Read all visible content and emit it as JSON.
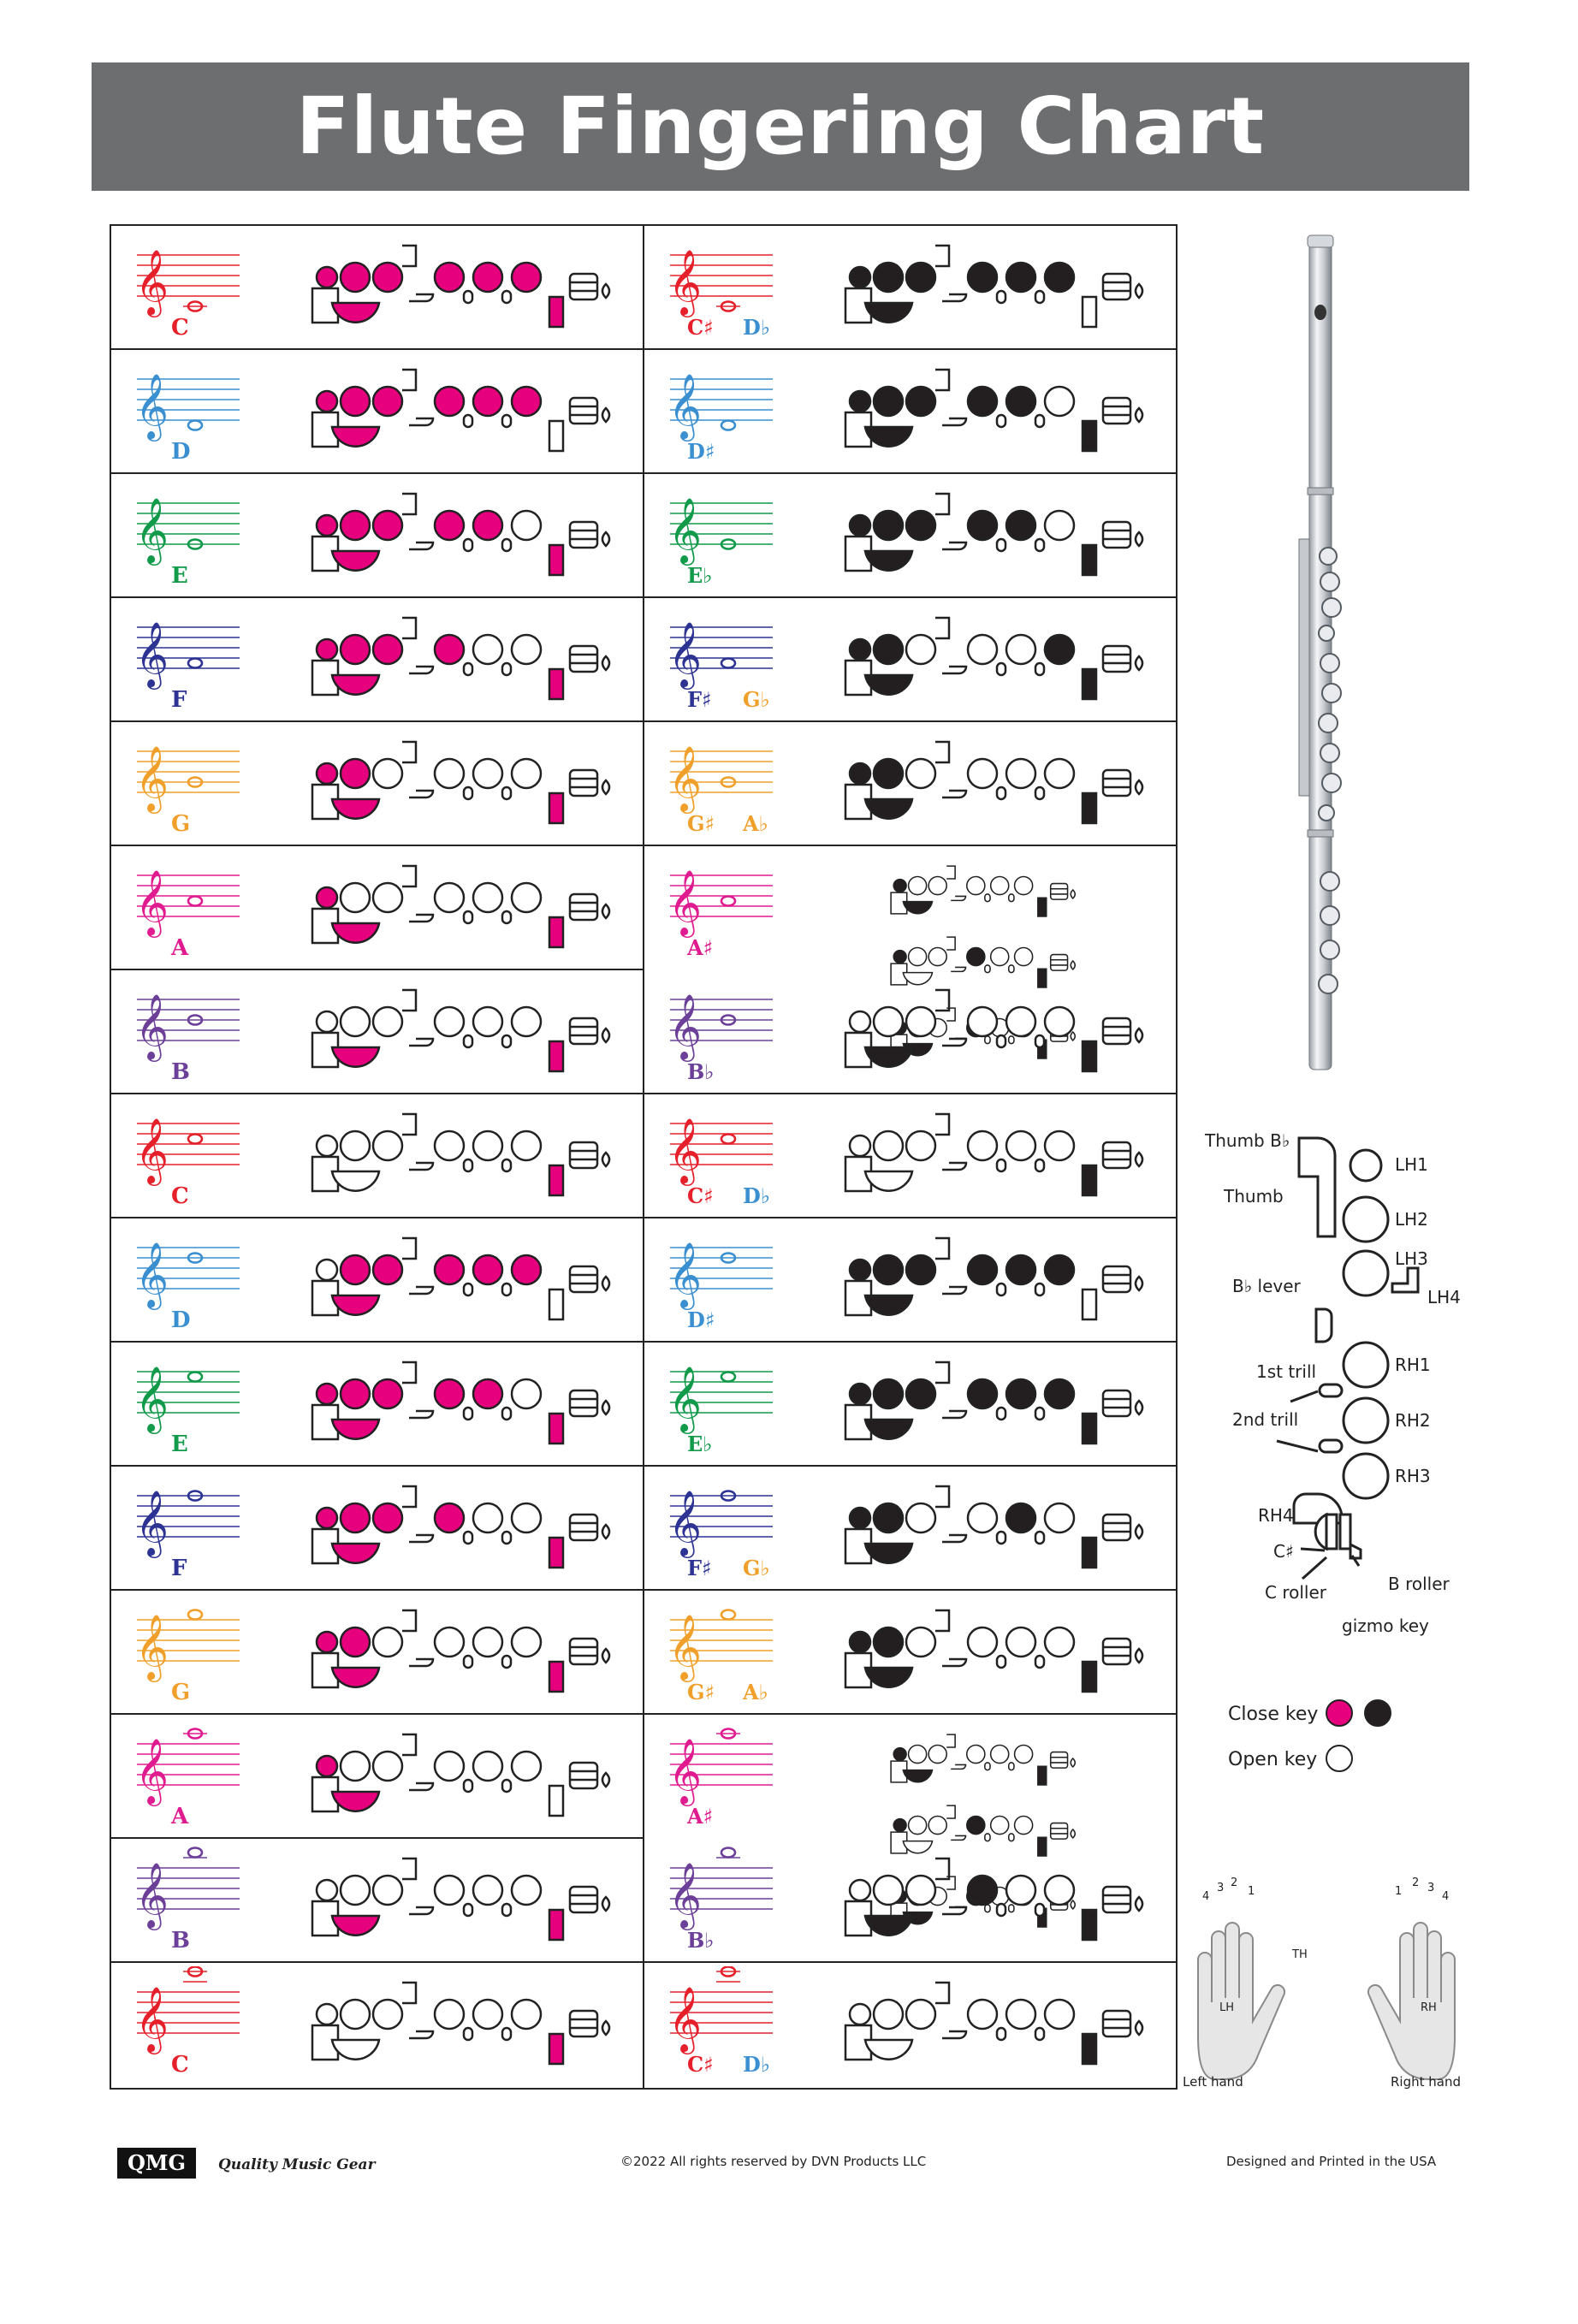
{
  "title": "Flute Fingering Chart",
  "colors": {
    "closed_low": "#e6007e",
    "closed_high": "#231f20",
    "open": "#ffffff"
  },
  "left_column": [
    {
      "note": "C",
      "color": "#e5202a",
      "pos": 10
    },
    {
      "note": "D",
      "color": "#3a8fd0",
      "pos": 9
    },
    {
      "note": "E",
      "color": "#109a4a",
      "pos": 8
    },
    {
      "note": "F",
      "color": "#2c3393",
      "pos": 7
    },
    {
      "note": "G",
      "color": "#f0a02a",
      "pos": 6
    },
    {
      "note": "A",
      "color": "#e01b8f",
      "pos": 5
    },
    {
      "note": "B",
      "color": "#6c3f98",
      "pos": 4
    },
    {
      "note": "C",
      "color": "#e5202a",
      "pos": 3
    },
    {
      "note": "D",
      "color": "#3a8fd0",
      "pos": 2
    },
    {
      "note": "E",
      "color": "#109a4a",
      "pos": 1
    },
    {
      "note": "F",
      "color": "#2c3393",
      "pos": 0
    },
    {
      "note": "G",
      "color": "#f0a02a",
      "pos": -1
    },
    {
      "note": "A",
      "color": "#e01b8f",
      "pos": -2
    },
    {
      "note": "B",
      "color": "#6c3f98",
      "pos": -3
    },
    {
      "note": "C",
      "color": "#e5202a",
      "pos": -4
    }
  ],
  "right_column": [
    {
      "notes": [
        {
          "label": "C♯",
          "color": "#e5202a"
        },
        {
          "label": "D♭",
          "color": "#3a8fd0"
        }
      ]
    },
    {
      "notes": [
        {
          "label": "D♯",
          "color": "#3a8fd0"
        }
      ]
    },
    {
      "notes": [
        {
          "label": "E♭",
          "color": "#109a4a"
        }
      ]
    },
    {
      "notes": [
        {
          "label": "F♯",
          "color": "#2c3393"
        },
        {
          "label": "G♭",
          "color": "#f0a02a"
        }
      ]
    },
    {
      "notes": [
        {
          "label": "G♯",
          "color": "#f0a02a"
        },
        {
          "label": "A♭",
          "color": "#f0a02a"
        }
      ]
    },
    {
      "notes": [
        {
          "label": "A♯",
          "color": "#e01b8f"
        }
      ],
      "tall": true
    },
    {
      "notes": [
        {
          "label": "B♭",
          "color": "#6c3f98"
        }
      ]
    },
    {
      "notes": [
        {
          "label": "C♯",
          "color": "#e5202a"
        },
        {
          "label": "D♭",
          "color": "#3a8fd0"
        }
      ]
    },
    {
      "notes": [
        {
          "label": "D♯",
          "color": "#3a8fd0"
        }
      ]
    },
    {
      "notes": [
        {
          "label": "E♭",
          "color": "#109a4a"
        }
      ]
    },
    {
      "notes": [
        {
          "label": "F♯",
          "color": "#2c3393"
        },
        {
          "label": "G♭",
          "color": "#f0a02a"
        }
      ]
    },
    {
      "notes": [
        {
          "label": "G♯",
          "color": "#f0a02a"
        },
        {
          "label": "A♭",
          "color": "#f0a02a"
        }
      ]
    },
    {
      "notes": [
        {
          "label": "A♯",
          "color": "#e01b8f"
        }
      ],
      "tall": true
    },
    {
      "notes": [
        {
          "label": "B♭",
          "color": "#6c3f98"
        }
      ]
    },
    {
      "notes": [
        {
          "label": "C♯",
          "color": "#e5202a"
        },
        {
          "label": "D♭",
          "color": "#3a8fd0"
        }
      ]
    }
  ],
  "key_diagram": {
    "labels": {
      "thumb_bb": "Thumb B♭",
      "thumb": "Thumb",
      "lh1": "LH1",
      "lh2": "LH2",
      "lh3": "LH3",
      "lh4": "LH4",
      "bb_lever": "B♭ lever",
      "trill1": "1st trill",
      "trill2": "2nd trill",
      "rh1": "RH1",
      "rh2": "RH2",
      "rh3": "RH3",
      "rh4": "RH4",
      "c_sharp": "C♯",
      "c_roller": "C roller",
      "b_roller": "B roller",
      "gizmo": "gizmo key"
    }
  },
  "legend": {
    "close": "Close key",
    "open": "Open key"
  },
  "hands": {
    "left": "Left hand",
    "right": "Right hand",
    "lh": "LH",
    "rh": "RH",
    "th": "TH",
    "fingers_left": [
      "4",
      "3",
      "2",
      "1"
    ],
    "fingers_right": [
      "1",
      "2",
      "3",
      "4"
    ]
  },
  "footer": {
    "logo": "QMG",
    "brand": "Quality Music Gear",
    "copyright": "©2022 All rights reserved by DVN Products LLC",
    "made_in": "Designed and Printed in the USA"
  }
}
